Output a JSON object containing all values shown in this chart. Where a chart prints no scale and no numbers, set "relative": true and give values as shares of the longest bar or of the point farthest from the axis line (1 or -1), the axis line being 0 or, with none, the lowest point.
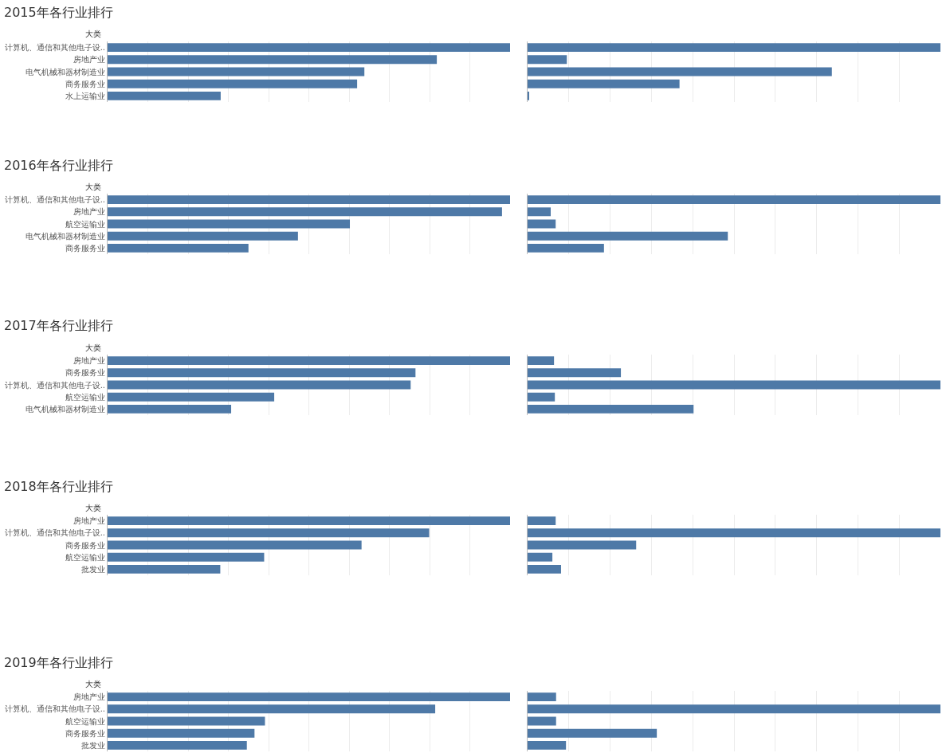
{
  "chart_data": [
    {
      "type": "bar",
      "orientation": "horizontal",
      "relative": true,
      "title": "2015年各行业排行",
      "ylabel": "大类",
      "grid": "x",
      "tick_labels": "y",
      "categories": [
        "计算机、通信和其他电子设..",
        "房地产业",
        "电气机械和器材制造业",
        "商务服务业",
        "水上运输业"
      ],
      "series": [
        {
          "color": "#4e79a7",
          "values": [
            1,
            0.818,
            0.638,
            0.62,
            0.281
          ]
        }
      ]
    },
    {
      "type": "bar",
      "orientation": "horizontal",
      "relative": true,
      "grid": "x",
      "tick_labels": false,
      "categories": [
        null,
        null,
        null,
        null,
        null
      ],
      "series": [
        {
          "color": "#4e79a7",
          "values": [
            1,
            0.095,
            0.737,
            0.368,
            0.002
          ]
        }
      ]
    },
    {
      "type": "bar",
      "orientation": "horizontal",
      "relative": true,
      "title": "2016年各行业排行",
      "ylabel": "大类",
      "grid": "x",
      "tick_labels": "y",
      "categories": [
        "计算机、通信和其他电子设..",
        "房地产业",
        "航空运输业",
        "电气机械和器材制造业",
        "商务服务业"
      ],
      "series": [
        {
          "color": "#4e79a7",
          "values": [
            1,
            0.98,
            0.602,
            0.473,
            0.35
          ]
        }
      ]
    },
    {
      "type": "bar",
      "orientation": "horizontal",
      "relative": true,
      "grid": "x",
      "tick_labels": false,
      "categories": [
        null,
        null,
        null,
        null,
        null
      ],
      "series": [
        {
          "color": "#4e79a7",
          "values": [
            1,
            0.056,
            0.068,
            0.485,
            0.185
          ]
        }
      ]
    },
    {
      "type": "bar",
      "orientation": "horizontal",
      "relative": true,
      "title": "2017年各行业排行",
      "ylabel": "大类",
      "grid": "x",
      "tick_labels": "y",
      "categories": [
        "房地产业",
        "商务服务业",
        "计算机、通信和其他电子设..",
        "航空运输业",
        "电气机械和器材制造业"
      ],
      "series": [
        {
          "color": "#4e79a7",
          "values": [
            1,
            0.765,
            0.753,
            0.414,
            0.307
          ]
        }
      ]
    },
    {
      "type": "bar",
      "orientation": "horizontal",
      "relative": true,
      "grid": "x",
      "tick_labels": false,
      "categories": [
        null,
        null,
        null,
        null,
        null
      ],
      "series": [
        {
          "color": "#4e79a7",
          "values": [
            0.064,
            0.226,
            1,
            0.066,
            0.402
          ]
        }
      ]
    },
    {
      "type": "bar",
      "orientation": "horizontal",
      "relative": true,
      "title": "2018年各行业排行",
      "ylabel": "大类",
      "grid": "x",
      "tick_labels": "y",
      "categories": [
        "房地产业",
        "计算机、通信和其他电子设..",
        "商务服务业",
        "航空运输业",
        "批发业"
      ],
      "series": [
        {
          "color": "#4e79a7",
          "values": [
            1,
            0.799,
            0.631,
            0.389,
            0.28
          ]
        }
      ]
    },
    {
      "type": "bar",
      "orientation": "horizontal",
      "relative": true,
      "grid": "x",
      "tick_labels": false,
      "categories": [
        null,
        null,
        null,
        null,
        null
      ],
      "series": [
        {
          "color": "#4e79a7",
          "values": [
            0.068,
            1,
            0.263,
            0.06,
            0.081
          ]
        }
      ]
    },
    {
      "type": "bar",
      "orientation": "horizontal",
      "relative": true,
      "title": "2019年各行业排行",
      "ylabel": "大类",
      "grid": "x",
      "tick_labels": "y",
      "categories": [
        "房地产业",
        "计算机、通信和其他电子设..",
        "航空运输业",
        "商务服务业",
        "批发业"
      ],
      "series": [
        {
          "color": "#4e79a7",
          "values": [
            1,
            0.814,
            0.391,
            0.365,
            0.346
          ]
        }
      ]
    },
    {
      "type": "bar",
      "orientation": "horizontal",
      "relative": true,
      "grid": "x",
      "tick_labels": false,
      "categories": [
        null,
        null,
        null,
        null,
        null
      ],
      "series": [
        {
          "color": "#4e79a7",
          "values": [
            0.069,
            1,
            0.069,
            0.313,
            0.093
          ]
        }
      ]
    }
  ]
}
